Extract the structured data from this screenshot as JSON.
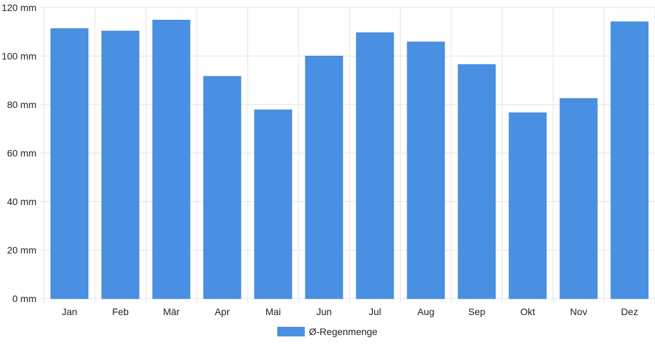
{
  "chart_data": {
    "type": "bar",
    "categories": [
      "Jan",
      "Feb",
      "Mär",
      "Apr",
      "Mai",
      "Jun",
      "Jul",
      "Aug",
      "Sep",
      "Okt",
      "Nov",
      "Dez"
    ],
    "series": [
      {
        "name": "Ø-Regenmenge",
        "values": [
          111.3,
          110.3,
          114.8,
          91.6,
          77.8,
          100.0,
          109.6,
          105.8,
          96.5,
          76.6,
          82.5,
          114.1
        ]
      }
    ],
    "yticks": [
      "0 mm",
      "20 mm",
      "40 mm",
      "60 mm",
      "80 mm",
      "100 mm",
      "120 mm"
    ],
    "ylim": [
      0,
      120
    ],
    "grid": true,
    "legend_position": "bottom-center",
    "bar_color": "#4a90e2",
    "grid_color": "#e3e3e3"
  }
}
